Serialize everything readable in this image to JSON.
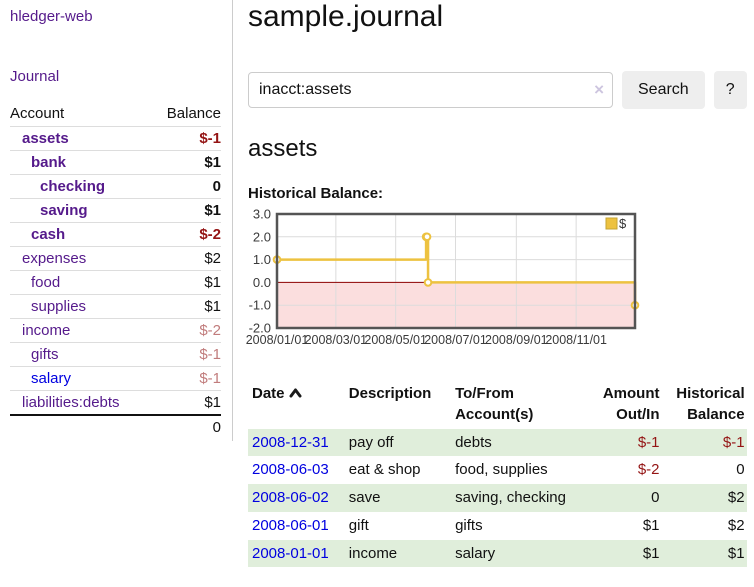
{
  "app": {
    "brand": "hledger-web"
  },
  "colors": {
    "link_purple": "#551a8b",
    "link_blue": "#0000e0",
    "negative_strong": "#941414",
    "negative_muted": "#c17c7c",
    "row_green": "#e0eedb",
    "series_gold": "#EDC240",
    "negative_region_pink": "#fbdede",
    "zero_line_red": "#8b0000"
  },
  "sidebar": {
    "nav_journal": "Journal",
    "table": {
      "account_header": "Account",
      "balance_header": "Balance"
    },
    "accounts": [
      {
        "name": "assets",
        "depth": 1,
        "bold": true,
        "balance": "$-1",
        "neg": "strong",
        "link": "purple"
      },
      {
        "name": "bank",
        "depth": 2,
        "bold": true,
        "balance": "$1",
        "neg": "none",
        "link": "purple"
      },
      {
        "name": "checking",
        "depth": 3,
        "bold": true,
        "balance": "0",
        "neg": "none",
        "link": "purple"
      },
      {
        "name": "saving",
        "depth": 3,
        "bold": true,
        "balance": "$1",
        "neg": "none",
        "link": "purple"
      },
      {
        "name": "cash",
        "depth": 2,
        "bold": true,
        "balance": "$-2",
        "neg": "strong",
        "link": "purple"
      },
      {
        "name": "expenses",
        "depth": 1,
        "bold": false,
        "balance": "$2",
        "neg": "none",
        "link": "purple"
      },
      {
        "name": "food",
        "depth": 2,
        "bold": false,
        "balance": "$1",
        "neg": "none",
        "link": "purple"
      },
      {
        "name": "supplies",
        "depth": 2,
        "bold": false,
        "balance": "$1",
        "neg": "none",
        "link": "purple"
      },
      {
        "name": "income",
        "depth": 1,
        "bold": false,
        "balance": "$-2",
        "neg": "muted",
        "link": "purple"
      },
      {
        "name": "gifts",
        "depth": 2,
        "bold": false,
        "balance": "$-1",
        "neg": "muted",
        "link": "purple"
      },
      {
        "name": "salary",
        "depth": 2,
        "bold": false,
        "balance": "$-1",
        "neg": "muted",
        "link": "blue"
      },
      {
        "name": "liabilities:debts",
        "depth": 1,
        "bold": false,
        "balance": "$1",
        "neg": "none",
        "link": "purple"
      }
    ],
    "total": "0"
  },
  "main": {
    "title": "sample.journal",
    "search": {
      "value": "inacct:assets",
      "clear_icon": "×",
      "search_button": "Search",
      "help_button": "?"
    },
    "account_heading": "assets",
    "section_label": "Historical Balance:"
  },
  "chart_data": {
    "type": "line",
    "subtype": "step",
    "title": "Historical Balance",
    "series": [
      {
        "name": "$",
        "color": "#EDC240",
        "points": [
          [
            "2008-01-01",
            1
          ],
          [
            "2008-06-01",
            2
          ],
          [
            "2008-06-02",
            2
          ],
          [
            "2008-06-03",
            0
          ],
          [
            "2008-12-31",
            -1
          ]
        ]
      }
    ],
    "x_start": "2008-01-01",
    "x_end": "2008-12-31",
    "x_ticks": [
      "2008/01/01",
      "2008/03/01",
      "2008/05/01",
      "2008/07/01",
      "2008/09/01",
      "2008/11/01"
    ],
    "y_ticks": [
      "3.0",
      "2.0",
      "1.0",
      "0.0",
      "-1.0",
      "-2.0"
    ],
    "ylim": [
      -2,
      3
    ],
    "grid": true,
    "legend": {
      "label": "$",
      "position": "top-right"
    }
  },
  "register": {
    "headers": {
      "date": "Date",
      "description": "Description",
      "tofrom": "To/From Account(s)",
      "amount": "Amount Out/In",
      "balance": "Historical Balance"
    },
    "rows": [
      {
        "date": "2008-12-31",
        "description": "pay off",
        "accounts": "debts",
        "amount": "$-1",
        "amount_neg": true,
        "balance": "$-1",
        "balance_neg": true
      },
      {
        "date": "2008-06-03",
        "description": "eat & shop",
        "accounts": "food, supplies",
        "amount": "$-2",
        "amount_neg": true,
        "balance": "0",
        "balance_neg": false
      },
      {
        "date": "2008-06-02",
        "description": "save",
        "accounts": "saving, checking",
        "amount": "0",
        "amount_neg": false,
        "balance": "$2",
        "balance_neg": false
      },
      {
        "date": "2008-06-01",
        "description": "gift",
        "accounts": "gifts",
        "amount": "$1",
        "amount_neg": false,
        "balance": "$2",
        "balance_neg": false
      },
      {
        "date": "2008-01-01",
        "description": "income",
        "accounts": "salary",
        "amount": "$1",
        "amount_neg": false,
        "balance": "$1",
        "balance_neg": false
      }
    ]
  }
}
